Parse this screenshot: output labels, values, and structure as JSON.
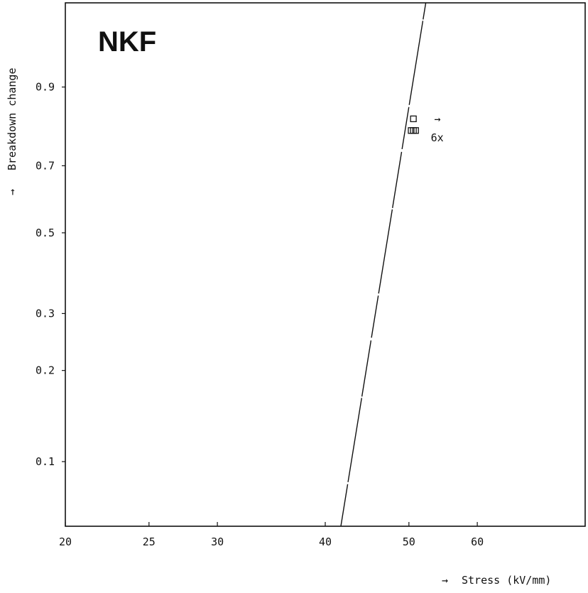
{
  "chart_data": {
    "type": "scatter",
    "title": "NKF",
    "xlabel": "Stress (kV/mm)",
    "ylabel": "Breakdown change",
    "x_scale": "log",
    "y_scale": "weibull",
    "xlim": [
      20,
      80
    ],
    "ylim": [
      0.06,
      0.99
    ],
    "x_ticks": [
      20,
      25,
      30,
      40,
      50,
      60
    ],
    "x_tick_labels": [
      "20",
      "25",
      "30",
      "40",
      "50",
      "60"
    ],
    "y_ticks": [
      0.1,
      0.2,
      0.3,
      0.5,
      0.7,
      0.9
    ],
    "y_tick_labels": [
      "0.1",
      "0.2",
      "0.3",
      "0.5",
      "0.7",
      "0.9"
    ],
    "grid": false,
    "series": [
      {
        "kind": "points",
        "marker": "square",
        "x": [
          50.3,
          50.6,
          50.9,
          50.6
        ],
        "y": [
          0.8,
          0.8,
          0.8,
          0.83
        ]
      },
      {
        "kind": "fit-line",
        "x": [
          41.7,
          52.3
        ],
        "y": [
          0.06,
          0.99
        ]
      }
    ],
    "annotations": [
      {
        "text": "6x",
        "x": 53.0,
        "y": 0.78
      },
      {
        "text": "→",
        "x": 53.5,
        "y": 0.83
      }
    ],
    "axis_arrow": "→"
  }
}
